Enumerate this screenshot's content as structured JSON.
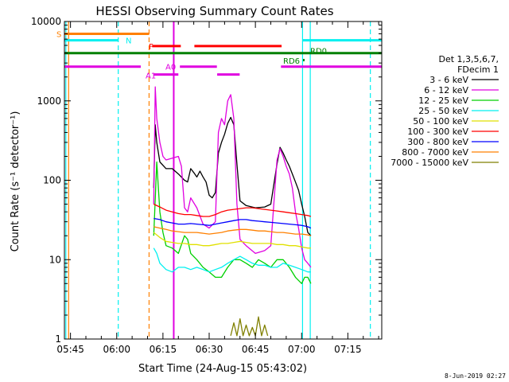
{
  "chart_data": {
    "type": "line",
    "title": "HESSI Observing Summary Count Rates",
    "xlabel": "Start Time (24-Aug-15 05:43:02)",
    "ylabel": "Count Rate (s⁻¹ detector⁻¹)",
    "x_tick_labels": [
      "05:45",
      "06:00",
      "06:15",
      "06:30",
      "06:45",
      "07:00",
      "07:15"
    ],
    "x_ticks_minutes": [
      345,
      360,
      375,
      390,
      405,
      420,
      435
    ],
    "xlim_minutes": [
      343.03,
      446.0
    ],
    "y_scale": "log",
    "ylim": [
      1,
      10000
    ],
    "y_tick_labels": [
      "1",
      "10",
      "100",
      "1000",
      "10000"
    ],
    "y_ticks": [
      1,
      10,
      100,
      1000,
      10000
    ],
    "legend": {
      "title_lines": [
        "Det 1,3,5,6,7,",
        "FDecim 1"
      ],
      "placement": "right"
    },
    "series": [
      {
        "name": "3 - 6 keV",
        "color": "#000000",
        "points": [
          [
            372,
            80
          ],
          [
            372.5,
            500
          ],
          [
            373,
            300
          ],
          [
            374,
            170
          ],
          [
            376,
            140
          ],
          [
            378,
            140
          ],
          [
            380,
            120
          ],
          [
            382,
            100
          ],
          [
            383,
            95
          ],
          [
            384,
            140
          ],
          [
            385,
            125
          ],
          [
            386,
            110
          ],
          [
            387,
            130
          ],
          [
            388,
            110
          ],
          [
            389,
            95
          ],
          [
            390,
            65
          ],
          [
            391,
            60
          ],
          [
            392,
            70
          ],
          [
            393,
            220
          ],
          [
            394,
            300
          ],
          [
            395,
            380
          ],
          [
            396,
            520
          ],
          [
            397,
            620
          ],
          [
            398,
            500
          ],
          [
            399,
            160
          ],
          [
            400,
            55
          ],
          [
            402,
            48
          ],
          [
            405,
            45
          ],
          [
            408,
            46
          ],
          [
            410,
            50
          ],
          [
            412,
            160
          ],
          [
            413,
            260
          ],
          [
            414,
            220
          ],
          [
            415,
            180
          ],
          [
            416,
            150
          ],
          [
            417,
            120
          ],
          [
            418,
            95
          ],
          [
            419,
            75
          ],
          [
            420,
            50
          ],
          [
            421,
            35
          ],
          [
            422,
            22
          ],
          [
            423,
            20
          ]
        ]
      },
      {
        "name": "6 - 12 keV",
        "color": "#e000e0",
        "points": [
          [
            372,
            50
          ],
          [
            372.5,
            1500
          ],
          [
            373,
            600
          ],
          [
            374,
            300
          ],
          [
            375,
            200
          ],
          [
            376,
            180
          ],
          [
            378,
            190
          ],
          [
            380,
            200
          ],
          [
            381,
            150
          ],
          [
            382,
            45
          ],
          [
            383,
            40
          ],
          [
            384,
            60
          ],
          [
            386,
            45
          ],
          [
            388,
            28
          ],
          [
            390,
            25
          ],
          [
            392,
            30
          ],
          [
            393,
            400
          ],
          [
            394,
            600
          ],
          [
            395,
            500
          ],
          [
            396,
            1000
          ],
          [
            397,
            1200
          ],
          [
            398,
            600
          ],
          [
            399,
            50
          ],
          [
            400,
            18
          ],
          [
            402,
            15
          ],
          [
            405,
            12
          ],
          [
            408,
            13
          ],
          [
            410,
            15
          ],
          [
            412,
            180
          ],
          [
            413,
            250
          ],
          [
            414,
            200
          ],
          [
            415,
            150
          ],
          [
            416,
            120
          ],
          [
            417,
            80
          ],
          [
            418,
            40
          ],
          [
            419,
            25
          ],
          [
            420,
            14
          ],
          [
            421,
            10
          ],
          [
            422,
            9
          ],
          [
            423,
            8
          ]
        ]
      },
      {
        "name": "12 - 25 keV",
        "color": "#00d000",
        "points": [
          [
            372,
            20
          ],
          [
            373,
            170
          ],
          [
            374,
            40
          ],
          [
            375,
            22
          ],
          [
            376,
            15
          ],
          [
            378,
            14
          ],
          [
            380,
            12
          ],
          [
            382,
            20
          ],
          [
            383,
            18
          ],
          [
            384,
            12
          ],
          [
            386,
            10
          ],
          [
            388,
            8
          ],
          [
            390,
            7
          ],
          [
            392,
            6
          ],
          [
            394,
            6
          ],
          [
            396,
            8
          ],
          [
            398,
            10
          ],
          [
            400,
            10
          ],
          [
            402,
            9
          ],
          [
            404,
            8
          ],
          [
            406,
            10
          ],
          [
            408,
            9
          ],
          [
            410,
            8
          ],
          [
            412,
            10
          ],
          [
            414,
            10
          ],
          [
            416,
            8
          ],
          [
            418,
            6
          ],
          [
            420,
            5
          ],
          [
            421,
            6
          ],
          [
            422,
            6
          ],
          [
            423,
            5
          ]
        ]
      },
      {
        "name": "25 - 50 keV",
        "color": "#00f0f0",
        "points": [
          [
            372,
            14
          ],
          [
            373,
            12
          ],
          [
            374,
            9
          ],
          [
            376,
            7.5
          ],
          [
            378,
            7
          ],
          [
            380,
            8
          ],
          [
            382,
            8
          ],
          [
            384,
            7.5
          ],
          [
            386,
            8
          ],
          [
            388,
            7.5
          ],
          [
            390,
            7
          ],
          [
            392,
            7.5
          ],
          [
            394,
            8
          ],
          [
            396,
            9
          ],
          [
            398,
            10
          ],
          [
            400,
            11
          ],
          [
            402,
            10
          ],
          [
            404,
            9
          ],
          [
            406,
            8.5
          ],
          [
            408,
            8.5
          ],
          [
            410,
            8
          ],
          [
            412,
            8
          ],
          [
            414,
            9
          ],
          [
            416,
            8.5
          ],
          [
            418,
            8
          ],
          [
            420,
            7.5
          ],
          [
            422,
            7
          ],
          [
            423,
            7
          ]
        ]
      },
      {
        "name": "50 - 100 keV",
        "color": "#e0e000",
        "points": [
          [
            372,
            22
          ],
          [
            374,
            19
          ],
          [
            376,
            17
          ],
          [
            378,
            16.5
          ],
          [
            380,
            16
          ],
          [
            382,
            16
          ],
          [
            384,
            15.5
          ],
          [
            386,
            15.5
          ],
          [
            388,
            15
          ],
          [
            390,
            15
          ],
          [
            392,
            15.5
          ],
          [
            394,
            16
          ],
          [
            396,
            16
          ],
          [
            398,
            16.5
          ],
          [
            400,
            17
          ],
          [
            402,
            16.5
          ],
          [
            404,
            16
          ],
          [
            406,
            16
          ],
          [
            408,
            16
          ],
          [
            410,
            16
          ],
          [
            412,
            15.5
          ],
          [
            414,
            15.5
          ],
          [
            416,
            15
          ],
          [
            418,
            15
          ],
          [
            420,
            14.5
          ],
          [
            422,
            14
          ],
          [
            423,
            14
          ]
        ]
      },
      {
        "name": "100 - 300 keV",
        "color": "#ff0000",
        "points": [
          [
            372,
            50
          ],
          [
            374,
            46
          ],
          [
            376,
            42
          ],
          [
            378,
            40
          ],
          [
            380,
            38
          ],
          [
            382,
            37
          ],
          [
            384,
            37
          ],
          [
            386,
            36
          ],
          [
            388,
            35
          ],
          [
            390,
            35
          ],
          [
            392,
            37
          ],
          [
            394,
            40
          ],
          [
            396,
            42
          ],
          [
            398,
            43
          ],
          [
            400,
            44
          ],
          [
            402,
            45
          ],
          [
            404,
            45
          ],
          [
            406,
            44
          ],
          [
            408,
            43
          ],
          [
            410,
            42
          ],
          [
            412,
            41
          ],
          [
            414,
            40
          ],
          [
            416,
            39
          ],
          [
            418,
            38
          ],
          [
            420,
            37
          ],
          [
            422,
            36
          ],
          [
            423,
            35
          ]
        ]
      },
      {
        "name": "300 - 800 keV",
        "color": "#0000ff",
        "points": [
          [
            372,
            33
          ],
          [
            374,
            32
          ],
          [
            376,
            30
          ],
          [
            378,
            29
          ],
          [
            380,
            28
          ],
          [
            382,
            28
          ],
          [
            384,
            28.5
          ],
          [
            386,
            28
          ],
          [
            388,
            27.5
          ],
          [
            390,
            27
          ],
          [
            392,
            28
          ],
          [
            394,
            29
          ],
          [
            396,
            30
          ],
          [
            398,
            31
          ],
          [
            400,
            32
          ],
          [
            402,
            32
          ],
          [
            404,
            31
          ],
          [
            406,
            30.5
          ],
          [
            408,
            30
          ],
          [
            410,
            29.5
          ],
          [
            412,
            29
          ],
          [
            414,
            28.5
          ],
          [
            416,
            28
          ],
          [
            418,
            27.5
          ],
          [
            420,
            27
          ],
          [
            422,
            26
          ],
          [
            423,
            25
          ]
        ]
      },
      {
        "name": "800 - 7000 keV",
        "color": "#ff8000",
        "points": [
          [
            372,
            26
          ],
          [
            374,
            25
          ],
          [
            376,
            24
          ],
          [
            378,
            23
          ],
          [
            380,
            22.5
          ],
          [
            382,
            22
          ],
          [
            384,
            22
          ],
          [
            386,
            22
          ],
          [
            388,
            21.5
          ],
          [
            390,
            21
          ],
          [
            392,
            21.5
          ],
          [
            394,
            22
          ],
          [
            396,
            23
          ],
          [
            398,
            23.5
          ],
          [
            400,
            24
          ],
          [
            402,
            24
          ],
          [
            404,
            23.5
          ],
          [
            406,
            23
          ],
          [
            408,
            23
          ],
          [
            410,
            22.5
          ],
          [
            412,
            22
          ],
          [
            414,
            22
          ],
          [
            416,
            21.5
          ],
          [
            418,
            21
          ],
          [
            420,
            21
          ],
          [
            422,
            20.5
          ],
          [
            423,
            20
          ]
        ]
      },
      {
        "name": "7000 - 15000 keV",
        "color": "#808000",
        "points": [
          [
            397,
            1.1
          ],
          [
            398,
            1.6
          ],
          [
            399,
            1.1
          ],
          [
            400,
            1.8
          ],
          [
            401,
            1.1
          ],
          [
            402,
            1.5
          ],
          [
            403,
            1.1
          ],
          [
            404,
            1.4
          ],
          [
            405,
            1.1
          ],
          [
            406,
            1.9
          ],
          [
            407,
            1.1
          ],
          [
            408,
            1.5
          ],
          [
            409,
            1.1
          ]
        ]
      }
    ],
    "annotations": [
      {
        "label": "S",
        "color": "#ff8000",
        "y": 7000,
        "bars": [
          [
            343.03,
            370.5
          ]
        ]
      },
      {
        "label": "N",
        "color": "#00f0f0",
        "y": 5800,
        "bars": [
          [
            343.03,
            360.5
          ],
          [
            420.3,
            446
          ]
        ]
      },
      {
        "label": "F",
        "color": "#ff0000",
        "y": 4900,
        "bars": [
          [
            371.5,
            380.8
          ],
          [
            385.2,
            413.5
          ]
        ]
      },
      {
        "label": "RD0",
        "color": "#008000",
        "y": 4000,
        "bars": [
          [
            343.03,
            446
          ]
        ]
      },
      {
        "label": "RD6",
        "color": "#008000",
        "y": 3300,
        "bars": []
      },
      {
        "label": "A0",
        "color": "#e000e0",
        "y": 2700,
        "bars": [
          [
            343.03,
            367.8
          ],
          [
            380.5,
            392.5
          ],
          [
            413.3,
            446
          ]
        ]
      },
      {
        "label": "A1",
        "color": "#e000e0",
        "y": 2150,
        "bars": [
          [
            372,
            380
          ],
          [
            392.6,
            399.9
          ]
        ]
      }
    ],
    "vertical_lines": [
      {
        "x": 343.5,
        "color": "#00f0f0",
        "style": "solid"
      },
      {
        "x": 344.4,
        "color": "#ff8000",
        "style": "solid"
      },
      {
        "x": 360.5,
        "color": "#00f0f0",
        "style": "dashed"
      },
      {
        "x": 370.5,
        "color": "#ff8000",
        "style": "dashed"
      },
      {
        "x": 420.3,
        "color": "#00f0f0",
        "style": "solid"
      },
      {
        "x": 422.8,
        "color": "#00f0f0",
        "style": "solid"
      },
      {
        "x": 442.3,
        "color": "#00f0f0",
        "style": "dashed"
      },
      {
        "x": 378.5,
        "color": "#e000e0",
        "style": "solid"
      }
    ]
  },
  "footer_date": "8-Jun-2019 02:27"
}
